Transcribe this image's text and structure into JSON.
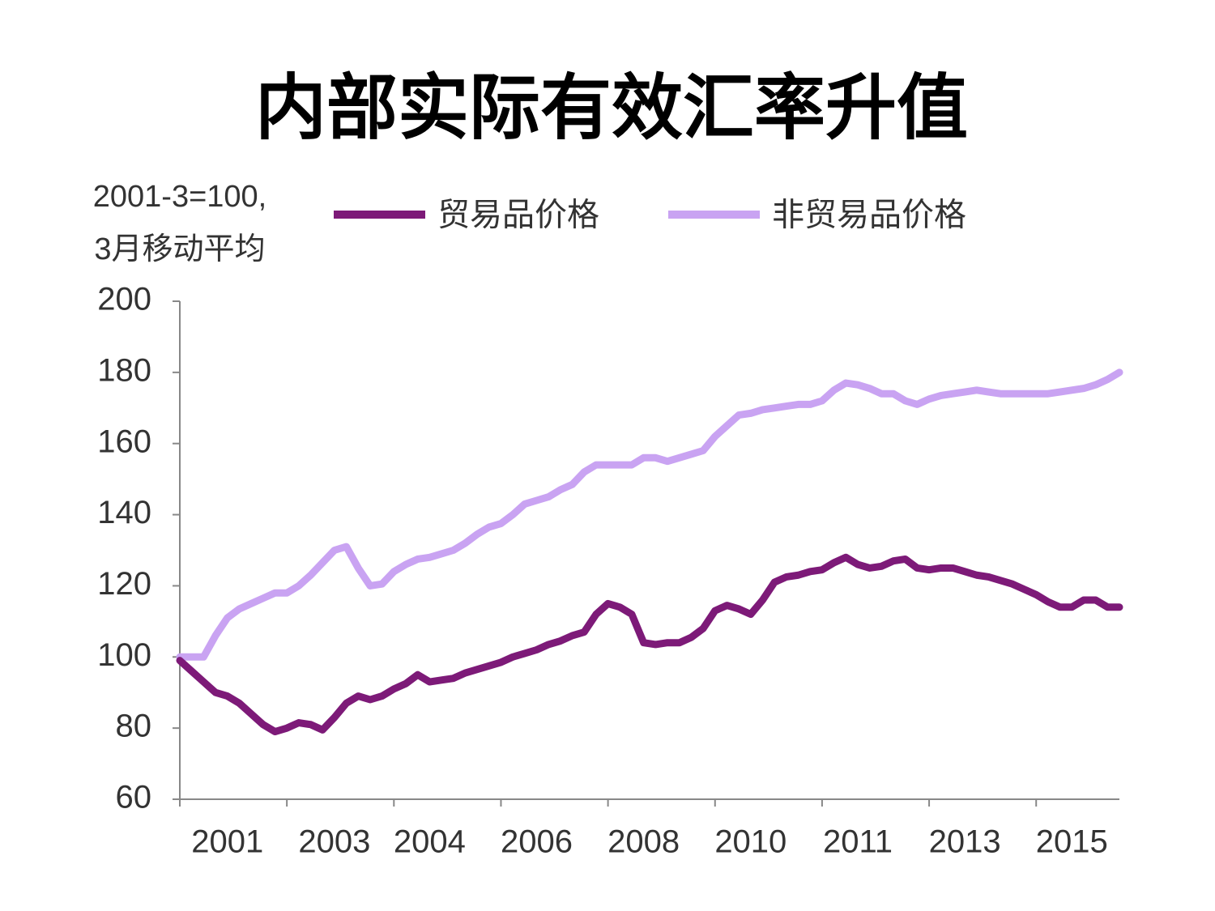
{
  "chart_data": {
    "type": "line",
    "title": "内部实际有效汇率升值",
    "ylabel": [
      "2001-3=100,",
      "3月移动平均"
    ],
    "categories": [
      null,
      null,
      null,
      null,
      "2001",
      null,
      null,
      null,
      null,
      null,
      null,
      null,
      null,
      "2003",
      null,
      null,
      null,
      null,
      null,
      null,
      null,
      "2004",
      null,
      null,
      null,
      null,
      null,
      null,
      null,
      null,
      "2006",
      null,
      null,
      null,
      null,
      null,
      null,
      null,
      null,
      "2008",
      null,
      null,
      null,
      null,
      null,
      null,
      null,
      null,
      "2010",
      null,
      null,
      null,
      null,
      null,
      null,
      null,
      null,
      "2011",
      null,
      null,
      null,
      null,
      null,
      null,
      null,
      null,
      "2013",
      null,
      null,
      null,
      null,
      null,
      null,
      null,
      null,
      "2015",
      null,
      null,
      null,
      null
    ],
    "series": [
      {
        "name": "贸易品价格",
        "color": "#7d1a78",
        "values": [
          99,
          96,
          93,
          90,
          89,
          87,
          84,
          81,
          79,
          80,
          81.5,
          81,
          79.5,
          83,
          87,
          89,
          88,
          89,
          91,
          92.5,
          95,
          93,
          93.5,
          94,
          95.5,
          96.5,
          97.5,
          98.5,
          100,
          101,
          102,
          103.5,
          104.5,
          106,
          107,
          112,
          115,
          114,
          112,
          104,
          103.5,
          104,
          104,
          105.5,
          108,
          113,
          114.5,
          113.5,
          112,
          116,
          121,
          122.5,
          123,
          124,
          124.5,
          126.5,
          128,
          126,
          125,
          125.5,
          127,
          127.5,
          125,
          124.5,
          125,
          125,
          124,
          123,
          122.5,
          121.5,
          120.5,
          119,
          117.5,
          115.5,
          114,
          114,
          116,
          116,
          114,
          114
        ]
      },
      {
        "name": "非贸易品价格",
        "color": "#c9a3f2",
        "values": [
          100,
          100,
          100,
          106,
          111,
          113.5,
          115,
          116.5,
          118,
          118,
          120,
          123,
          126.5,
          130,
          131,
          125,
          120,
          120.5,
          124,
          126,
          127.5,
          128,
          129,
          130,
          132,
          134.5,
          136.5,
          137.5,
          140,
          143,
          144,
          145,
          147,
          148.5,
          152,
          154,
          154,
          154,
          154,
          156,
          156,
          155,
          156,
          157,
          158,
          162,
          165,
          168,
          168.5,
          169.5,
          170,
          170.5,
          171,
          171,
          172,
          175,
          177,
          176.5,
          175.5,
          174,
          174,
          172,
          171,
          172.5,
          173.5,
          174,
          174.5,
          175,
          174.5,
          174,
          174,
          174,
          174,
          174,
          174.5,
          175,
          175.5,
          176.5,
          178,
          180
        ]
      }
    ],
    "ylim": [
      60,
      200
    ],
    "yticks": [
      60,
      80,
      100,
      120,
      140,
      160,
      180,
      200
    ],
    "grid": false,
    "legend": "top"
  }
}
